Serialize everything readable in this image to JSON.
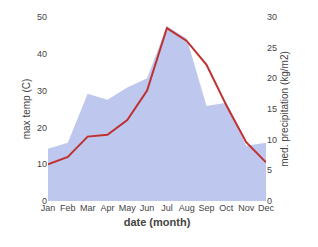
{
  "chart_data": {
    "type": "line",
    "xlabel": "date (month)",
    "ylabel": "max temp (C)",
    "y2label": "med. precipitation (kg/m2)",
    "categories": [
      "Jan",
      "Feb",
      "Mar",
      "Apr",
      "May",
      "Jun",
      "Jul",
      "Aug",
      "Sep",
      "Oct",
      "Nov",
      "Dec"
    ],
    "series": [
      {
        "type": "area",
        "axis": "y2",
        "color": "#bec8ef",
        "values": [
          8.5,
          9.5,
          17.5,
          16.5,
          18.5,
          20.0,
          28.5,
          26.5,
          15.5,
          16.0,
          9.0,
          9.5
        ]
      },
      {
        "type": "line",
        "color": "#c03030",
        "values": [
          10.0,
          12.0,
          17.5,
          18.0,
          22.0,
          30.0,
          47.0,
          43.5,
          37.0,
          26.0,
          16.0,
          10.5
        ]
      }
    ],
    "ylim": [
      0,
      50
    ],
    "yticks": [
      0,
      10,
      20,
      30,
      40,
      50
    ],
    "y2lim": [
      0,
      30
    ],
    "y2ticks": [
      0,
      5,
      10,
      15,
      20,
      25,
      30
    ],
    "grid": false
  }
}
